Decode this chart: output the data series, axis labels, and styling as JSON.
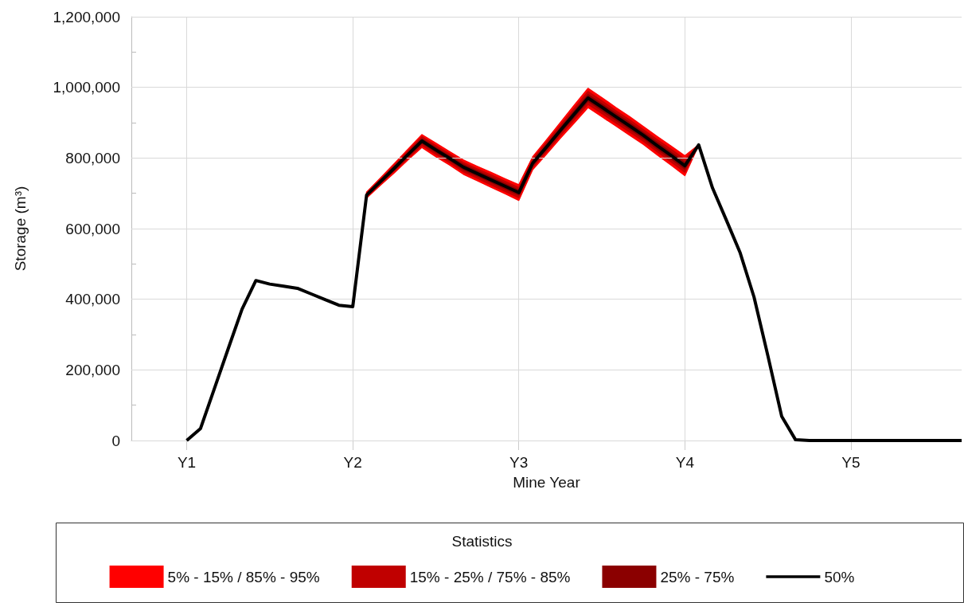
{
  "chart_data": {
    "type": "line",
    "xlabel": "Mine Year",
    "ylabel": "Storage (m³)",
    "legend_title": "Statistics",
    "legend": "bottom",
    "grid": true,
    "marker": "none",
    "categories": [
      null,
      null,
      null,
      null,
      "Y1",
      null,
      null,
      null,
      null,
      null,
      null,
      null,
      null,
      null,
      null,
      null,
      "Y2",
      null,
      null,
      null,
      null,
      null,
      null,
      null,
      null,
      null,
      null,
      null,
      "Y3",
      null,
      null,
      null,
      null,
      null,
      null,
      null,
      null,
      null,
      null,
      null,
      "Y4",
      null,
      null,
      null,
      null,
      null,
      null,
      null,
      null,
      null,
      null,
      null,
      "Y5",
      null,
      null,
      null,
      null,
      null,
      null,
      null,
      null
    ],
    "ylim": [
      0,
      1200000
    ],
    "yticks": [
      0,
      {
        "value": 100000,
        "label": null
      },
      {
        "value": 200000,
        "label": "200,000"
      },
      {
        "value": 300000,
        "label": null
      },
      {
        "value": 400000,
        "label": "400,000"
      },
      {
        "value": 500000,
        "label": null
      },
      {
        "value": 600000,
        "label": "600,000"
      },
      {
        "value": 700000,
        "label": null
      },
      {
        "value": 800000,
        "label": "800,000"
      },
      {
        "value": 900000,
        "label": null
      },
      {
        "value": 1000000,
        "label": "1,000,000"
      },
      {
        "value": 1100000,
        "label": null
      },
      {
        "value": 1200000,
        "label": "1,200,000"
      }
    ],
    "series": [
      {
        "name": "5% - 15% / 85% - 95%",
        "type": "area",
        "color": "#ff0000",
        "values": [
          null,
          null,
          null,
          null,
          null,
          null,
          null,
          null,
          null,
          null,
          null,
          null,
          null,
          null,
          null,
          null,
          null,
          null,
          null,
          null,
          null,
          null,
          null,
          null,
          null,
          null,
          null,
          null,
          null,
          null,
          null,
          null,
          null,
          null,
          null,
          null,
          null,
          null,
          null,
          null,
          null,
          null,
          null,
          null,
          null,
          null,
          null,
          null,
          null,
          null,
          null,
          null,
          null,
          null,
          null,
          null,
          null,
          null,
          null,
          null,
          null
        ],
        "lower": [
          null,
          null,
          null,
          null,
          null,
          null,
          null,
          null,
          null,
          null,
          null,
          null,
          null,
          null,
          null,
          null,
          null,
          687000,
          723000,
          758000,
          795000,
          830000,
          804000,
          780000,
          754000,
          736000,
          717000,
          699000,
          680000,
          767000,
          811000,
          856000,
          899000,
          943000,
          917000,
          891000,
          865000,
          839000,
          809000,
          780000,
          750000,
          837000,
          null,
          null,
          null,
          null,
          null,
          null,
          null,
          null,
          null,
          null,
          null,
          null,
          null,
          null,
          null,
          null,
          null,
          null,
          null
        ],
        "upper": [
          null,
          null,
          null,
          null,
          null,
          null,
          null,
          null,
          null,
          null,
          null,
          null,
          null,
          null,
          null,
          null,
          null,
          703000,
          743000,
          784000,
          825000,
          866000,
          842000,
          818000,
          794000,
          776000,
          759000,
          741000,
          724000,
          803000,
          851000,
          900000,
          949000,
          997000,
          971000,
          943000,
          917000,
          889000,
          861000,
          834000,
          806000,
          837000,
          null,
          null,
          null,
          null,
          null,
          null,
          null,
          null,
          null,
          null,
          null,
          null,
          null,
          null,
          null,
          null,
          null,
          null,
          null
        ]
      },
      {
        "name": "15% - 25% / 75% - 85%",
        "type": "area",
        "color": "#c00000",
        "values": [
          null,
          null,
          null,
          null,
          null,
          null,
          null,
          null,
          null,
          null,
          null,
          null,
          null,
          null,
          null,
          null,
          null,
          null,
          null,
          null,
          null,
          null,
          null,
          null,
          null,
          null,
          null,
          null,
          null,
          null,
          null,
          null,
          null,
          null,
          null,
          null,
          null,
          null,
          null,
          null,
          null,
          null,
          null,
          null,
          null,
          null,
          null,
          null,
          null,
          null,
          null,
          null,
          null,
          null,
          null,
          null,
          null,
          null,
          null,
          null,
          null
        ],
        "lower": [
          null,
          null,
          null,
          null,
          null,
          null,
          null,
          null,
          null,
          null,
          null,
          null,
          null,
          null,
          null,
          null,
          null,
          690000,
          727000,
          763000,
          800000,
          836000,
          811000,
          787000,
          761000,
          743000,
          724000,
          706000,
          688000,
          773000,
          818000,
          864000,
          908000,
          952000,
          926000,
          900000,
          874000,
          848000,
          818000,
          789000,
          760000,
          837000,
          null,
          null,
          null,
          null,
          null,
          null,
          null,
          null,
          null,
          null,
          null,
          null,
          null,
          null,
          null,
          null,
          null,
          null,
          null
        ],
        "upper": [
          null,
          null,
          null,
          null,
          null,
          null,
          null,
          null,
          null,
          null,
          null,
          null,
          null,
          null,
          null,
          null,
          null,
          700000,
          739000,
          779000,
          820000,
          860000,
          835000,
          811000,
          787000,
          769000,
          752000,
          734000,
          716000,
          797000,
          844000,
          892000,
          940000,
          988000,
          962000,
          934000,
          908000,
          880000,
          852000,
          825000,
          796000,
          837000,
          null,
          null,
          null,
          null,
          null,
          null,
          null,
          null,
          null,
          null,
          null,
          null,
          null,
          null,
          null,
          null,
          null,
          null,
          null
        ]
      },
      {
        "name": "25% - 75%",
        "type": "area",
        "color": "#8b0000",
        "values": [
          null,
          null,
          null,
          null,
          null,
          null,
          null,
          null,
          null,
          null,
          null,
          null,
          null,
          null,
          null,
          null,
          null,
          null,
          null,
          null,
          null,
          null,
          null,
          null,
          null,
          null,
          null,
          null,
          null,
          null,
          null,
          null,
          null,
          null,
          null,
          null,
          null,
          null,
          null,
          null,
          null,
          null,
          null,
          null,
          null,
          null,
          null,
          null,
          null,
          null,
          null,
          null,
          null,
          null,
          null,
          null,
          null,
          null,
          null,
          null,
          null
        ],
        "lower": [
          null,
          null,
          null,
          null,
          null,
          null,
          null,
          null,
          null,
          null,
          null,
          null,
          null,
          null,
          null,
          null,
          null,
          692000,
          730000,
          767000,
          805000,
          842000,
          817000,
          793000,
          767000,
          749000,
          731000,
          713000,
          695000,
          779000,
          825000,
          871000,
          916000,
          961000,
          935000,
          908000,
          882000,
          856000,
          826000,
          798000,
          769000,
          837000,
          null,
          null,
          null,
          null,
          null,
          null,
          null,
          null,
          null,
          null,
          null,
          null,
          null,
          null,
          null,
          null,
          null,
          null,
          null
        ],
        "upper": [
          null,
          null,
          null,
          null,
          null,
          null,
          null,
          null,
          null,
          null,
          null,
          null,
          null,
          null,
          null,
          null,
          null,
          698000,
          736000,
          775000,
          815000,
          854000,
          829000,
          805000,
          781000,
          763000,
          745000,
          727000,
          709000,
          791000,
          837000,
          885000,
          932000,
          979000,
          953000,
          926000,
          900000,
          872000,
          844000,
          816000,
          787000,
          837000,
          null,
          null,
          null,
          null,
          null,
          null,
          null,
          null,
          null,
          null,
          null,
          null,
          null,
          null,
          null,
          null,
          null,
          null,
          null
        ]
      },
      {
        "name": "50%",
        "color": "#000000",
        "line_style": "solid",
        "values": [
          null,
          null,
          null,
          null,
          0,
          34000,
          147000,
          260000,
          372000,
          453000,
          443000,
          437000,
          431000,
          415000,
          399000,
          383000,
          379000,
          695000,
          733000,
          771000,
          810000,
          848000,
          823000,
          799000,
          774000,
          756000,
          738000,
          720000,
          702000,
          785000,
          831000,
          878000,
          924000,
          970000,
          944000,
          917000,
          891000,
          864000,
          835000,
          807000,
          778000,
          837000,
          715000,
          624000,
          531000,
          406000,
          240000,
          68000,
          2000,
          0,
          0,
          0,
          0,
          0,
          0,
          0,
          0,
          0,
          0,
          0,
          0
        ]
      }
    ]
  }
}
